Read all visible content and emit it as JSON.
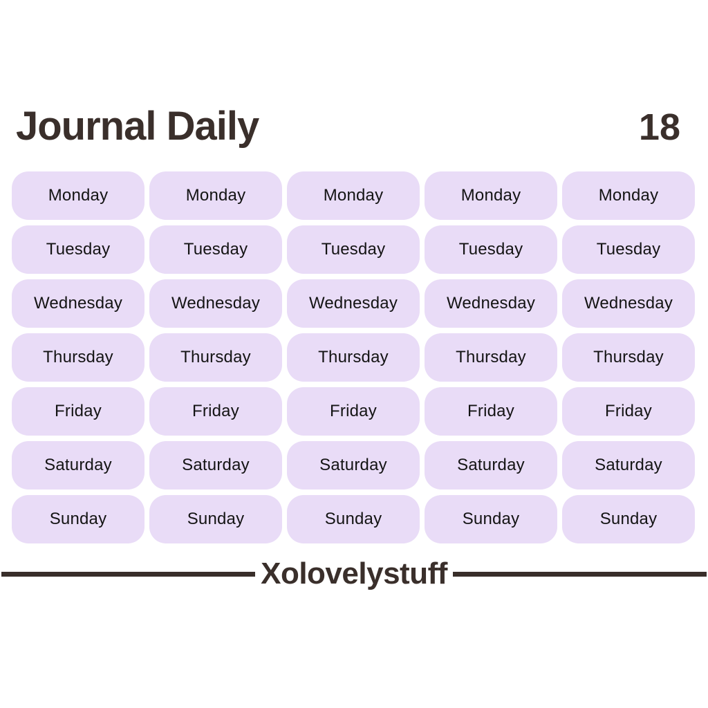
{
  "header": {
    "title": "Journal Daily",
    "sheet_number": "18"
  },
  "grid": {
    "columns": 5,
    "days": [
      "Monday",
      "Tuesday",
      "Wednesday",
      "Thursday",
      "Friday",
      "Saturday",
      "Sunday"
    ]
  },
  "footer": {
    "brand": "Xolovelystuff"
  },
  "colors": {
    "sticker_fill": "#e9dcf7",
    "sticker_text": "#141414",
    "heading_text": "#3a2f2b",
    "divider": "#392e2a",
    "page_background": "#ffffff"
  }
}
